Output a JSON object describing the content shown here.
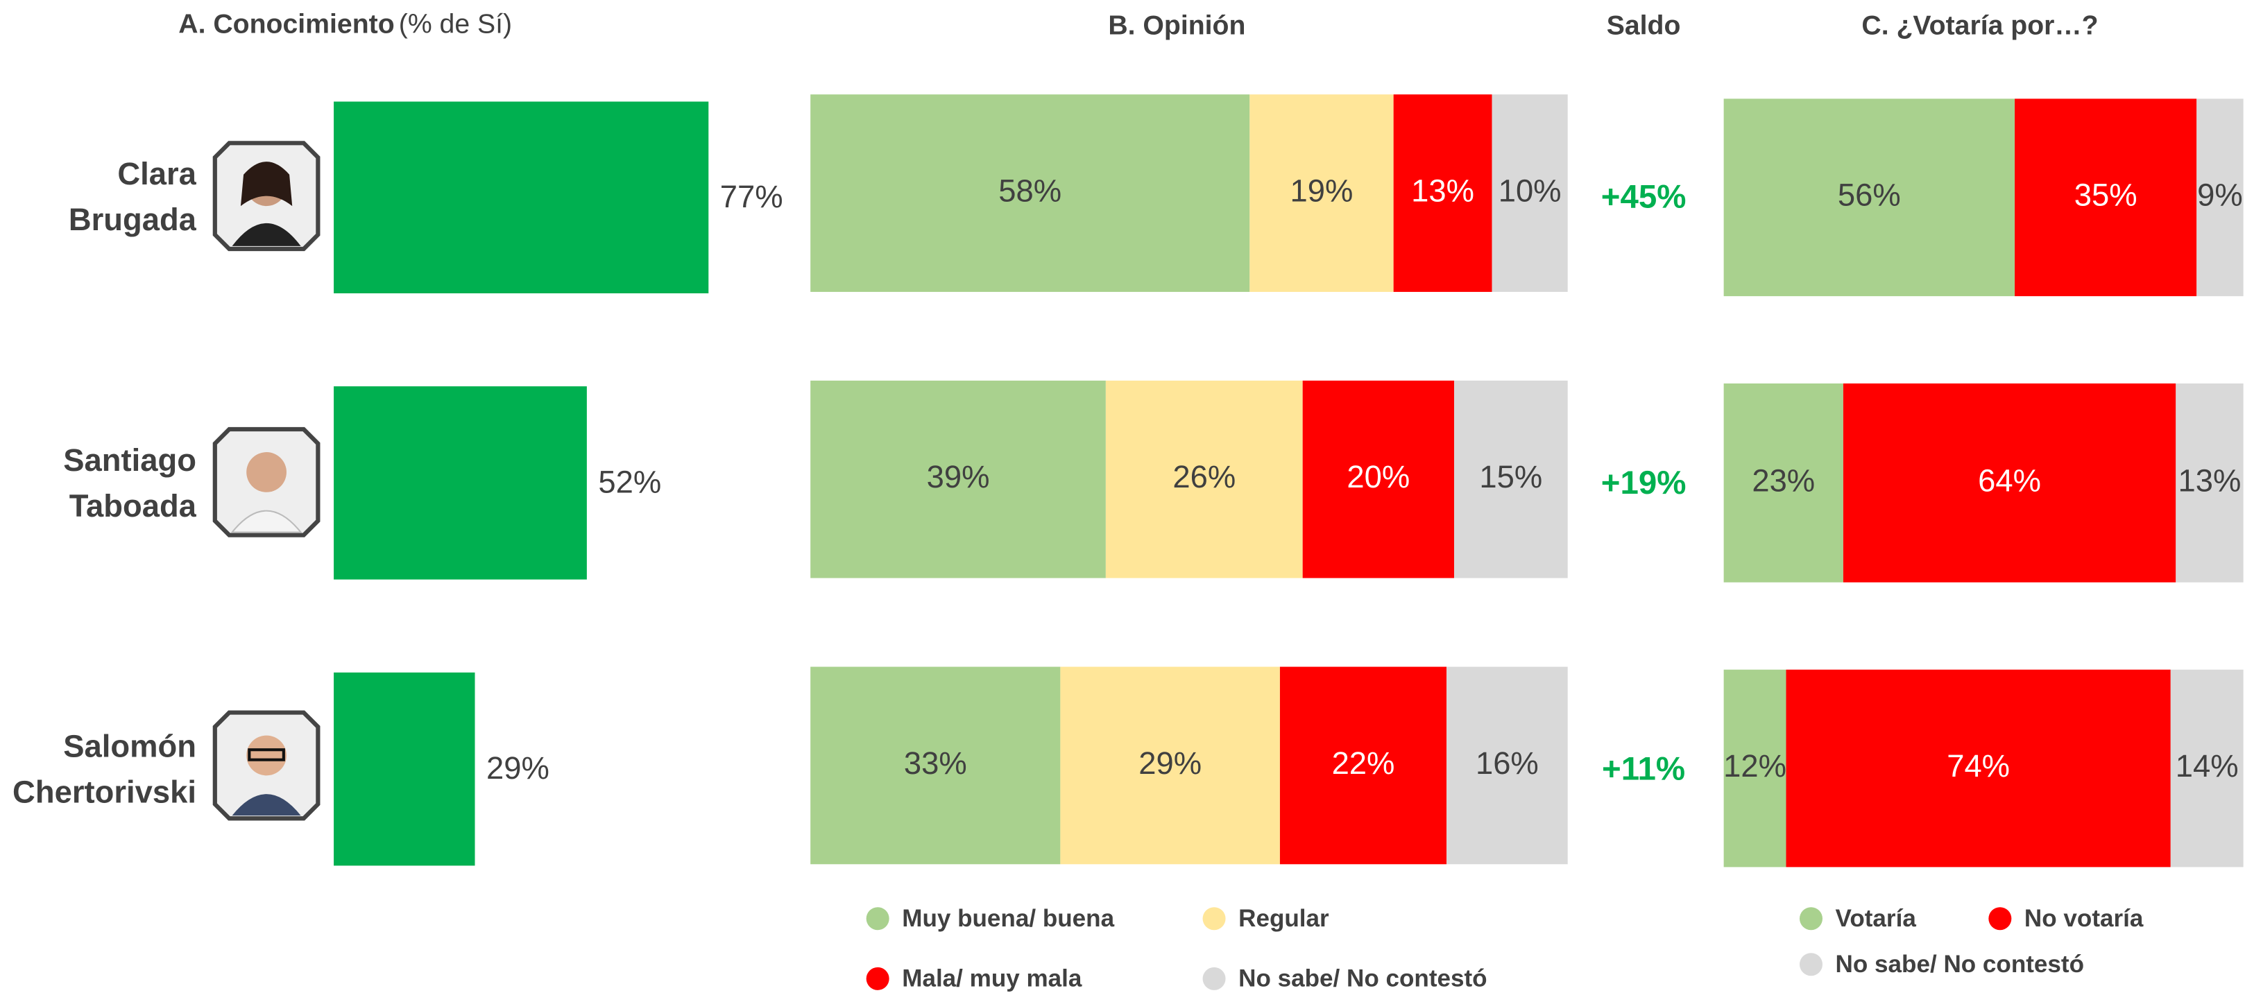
{
  "chart_data": [
    {
      "type": "bar",
      "title": "A. Conocimiento",
      "subtitle": "(% de Sí)",
      "categories": [
        "Clara Brugada",
        "Santiago Taboada",
        "Salomón Chertorivski"
      ],
      "values": [
        77,
        52,
        29
      ],
      "value_labels": [
        "77%",
        "52%",
        "29%"
      ],
      "color": "#00b050",
      "xlim": [
        0,
        100
      ]
    },
    {
      "type": "stacked_bar",
      "title": "B. Opinión",
      "xlim": [
        0,
        100
      ],
      "series": [
        {
          "name": "Muy buena/ buena",
          "color": "#a9d18e",
          "values": [
            58,
            39,
            33
          ],
          "value_labels": [
            "58%",
            "39%",
            "33%"
          ]
        },
        {
          "name": "Regular",
          "color": "#ffe699",
          "values": [
            19,
            26,
            29
          ],
          "value_labels": [
            "19%",
            "26%",
            "29%"
          ]
        },
        {
          "name": "Mala/ muy mala",
          "color": "#ff0000",
          "label_color": "#ffffff",
          "values": [
            13,
            20,
            22
          ],
          "value_labels": [
            "13%",
            "20%",
            "22%"
          ]
        },
        {
          "name": "No sabe/ No contestó",
          "color": "#d9d9d9",
          "values": [
            10,
            15,
            16
          ],
          "value_labels": [
            "10%",
            "15%",
            "16%"
          ]
        }
      ],
      "balance": {
        "title": "Saldo",
        "color": "#00b050",
        "values": [
          45,
          19,
          11
        ],
        "value_labels": [
          "+45%",
          "+19%",
          "+11%"
        ]
      }
    },
    {
      "type": "stacked_bar",
      "title": "C. ¿Votaría por…?",
      "xlim": [
        0,
        100
      ],
      "series": [
        {
          "name": "Votaría",
          "color": "#a9d18e",
          "values": [
            56,
            23,
            12
          ],
          "value_labels": [
            "56%",
            "23%",
            "12%"
          ]
        },
        {
          "name": "No votaría",
          "color": "#ff0000",
          "label_color": "#ffffff",
          "values": [
            35,
            64,
            74
          ],
          "value_labels": [
            "35%",
            "64%",
            "74%"
          ]
        },
        {
          "name": "No sabe/ No contestó",
          "color": "#d9d9d9",
          "values": [
            9,
            13,
            14
          ],
          "value_labels": [
            "9%",
            "13%",
            "14%"
          ]
        }
      ]
    }
  ]
}
